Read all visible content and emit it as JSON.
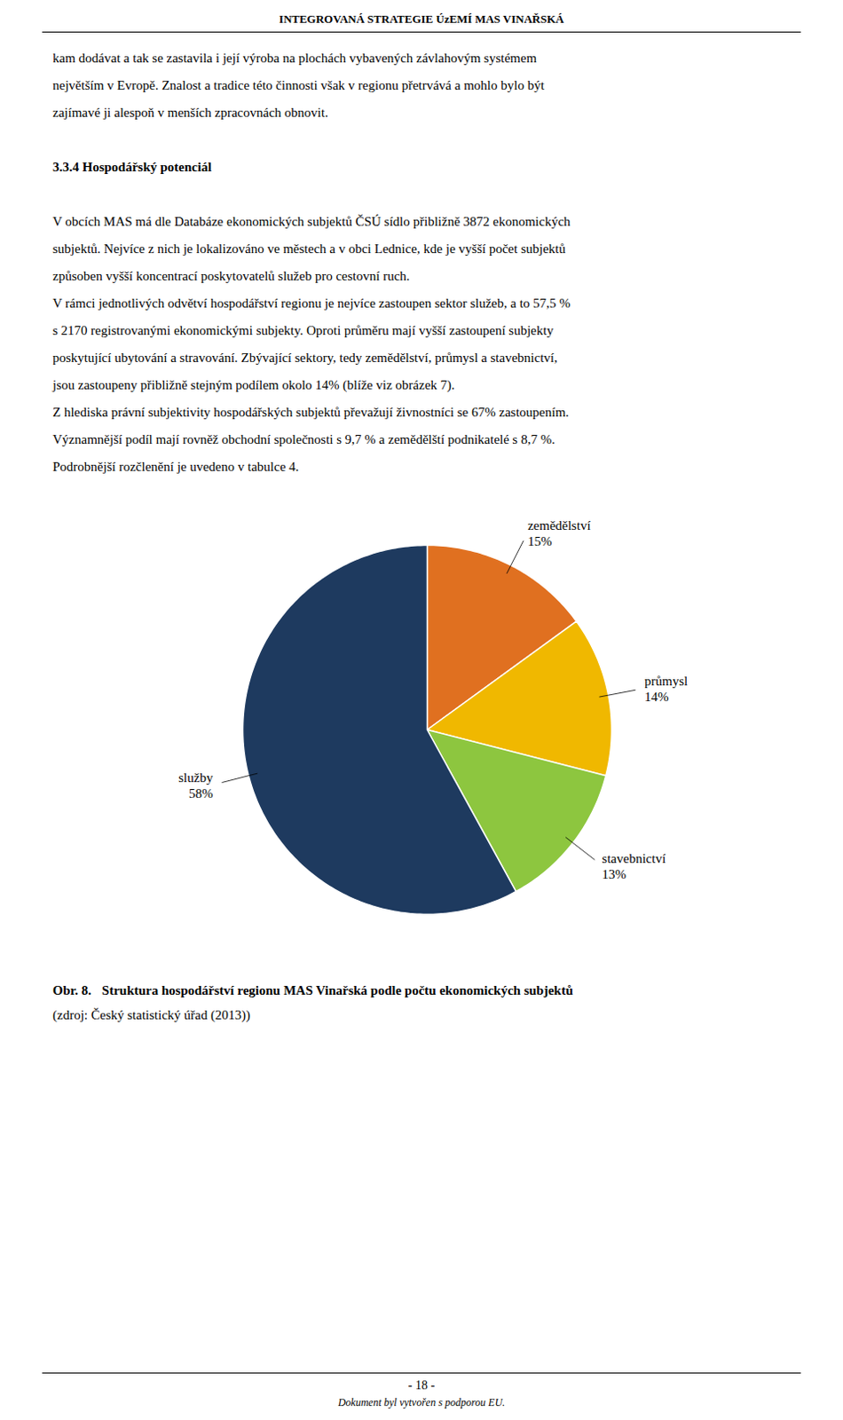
{
  "header": "INTEGROVANÁ STRATEGIE ÚzEMÍ MAS VINAŘSKÁ",
  "body_top": [
    "kam dodávat a tak se zastavila i její výroba na plochách vybavených závlahovým systémem",
    "největším v Evropě. Znalost a tradice této činnosti však v regionu přetrvává a mohlo bylo být",
    "zajímavé ji alespoň v menších zpracovnách obnovit."
  ],
  "section_heading": "3.3.4    Hospodářský potenciál",
  "body": [
    "V obcích MAS má dle Databáze ekonomických subjektů ČSÚ sídlo přibližně 3872 ekonomických",
    "subjektů. Nejvíce z nich je lokalizováno ve městech a v obci Lednice, kde je vyšší počet subjektů",
    "způsoben vyšší koncentrací poskytovatelů služeb pro cestovní ruch.",
    "V rámci jednotlivých odvětví hospodářství regionu je nejvíce zastoupen sektor služeb, a to 57,5 %",
    "s 2170 registrovanými ekonomickými subjekty. Oproti průměru mají vyšší zastoupení subjekty",
    "poskytující ubytování a stravování. Zbývající sektory, tedy zemědělství, průmysl a stavebnictví,",
    "jsou zastoupeny přibližně stejným podílem okolo 14% (blíže viz obrázek 7).",
    "Z hlediska právní subjektivity hospodářských subjektů převažují živnostníci se 67% zastoupením.",
    "Významnější podíl mají rovněž obchodní společnosti s 9,7 % a zemědělští podnikatelé s 8,7 %.",
    "Podrobnější rozčlenění je uvedeno v tabulce 4."
  ],
  "caption_label": "Obr. 8.",
  "source": "(zdroj: Český statistický úřad (2013))",
  "page_number": "- 18 -",
  "footer": "Dokument byl vytvořen s podporou EU.",
  "chart_data": {
    "type": "pie",
    "title": "Struktura hospodářství regionu MAS Vinařská podle počtu ekonomických subjektů",
    "categories": [
      "zemědělství",
      "průmysl",
      "stavebnictví",
      "služby"
    ],
    "values": [
      15,
      14,
      13,
      58
    ],
    "value_labels": [
      "15%",
      "14%",
      "13%",
      "58%"
    ],
    "colors": [
      "#e07020",
      "#f0b800",
      "#8dc63f",
      "#1e3a5f"
    ],
    "data_labels": true
  }
}
